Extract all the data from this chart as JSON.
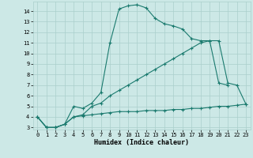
{
  "line1_x": [
    0,
    1,
    2,
    3,
    4,
    5,
    6,
    7,
    8,
    9,
    10,
    11,
    12,
    13,
    14,
    15,
    16,
    17,
    18,
    19,
    20,
    21
  ],
  "line1_y": [
    4.0,
    3.0,
    3.0,
    3.3,
    5.0,
    4.8,
    5.3,
    6.3,
    11.0,
    14.2,
    14.5,
    14.6,
    14.3,
    13.3,
    12.8,
    12.6,
    12.3,
    11.4,
    11.2,
    11.2,
    7.2,
    7.0
  ],
  "line2_x": [
    0,
    1,
    2,
    3,
    4,
    5,
    6,
    7,
    8,
    9,
    10,
    11,
    12,
    13,
    14,
    15,
    16,
    17,
    18,
    19,
    20,
    21,
    22,
    23
  ],
  "line2_y": [
    4.0,
    3.0,
    3.0,
    3.3,
    4.0,
    4.2,
    5.0,
    5.3,
    6.0,
    6.5,
    7.0,
    7.5,
    8.0,
    8.5,
    9.0,
    9.5,
    10.0,
    10.5,
    11.0,
    11.2,
    11.2,
    7.2,
    7.0,
    5.2
  ],
  "line3_x": [
    0,
    1,
    2,
    3,
    4,
    5,
    6,
    7,
    8,
    9,
    10,
    11,
    12,
    13,
    14,
    15,
    16,
    17,
    18,
    19,
    20,
    21,
    22,
    23
  ],
  "line3_y": [
    4.0,
    3.0,
    3.0,
    3.3,
    4.0,
    4.1,
    4.2,
    4.3,
    4.4,
    4.5,
    4.5,
    4.5,
    4.6,
    4.6,
    4.6,
    4.7,
    4.7,
    4.8,
    4.8,
    4.9,
    5.0,
    5.0,
    5.1,
    5.2
  ],
  "color": "#1a7a6e",
  "bg_color": "#cce8e6",
  "grid_color": "#aacfcc",
  "xlabel": "Humidex (Indice chaleur)",
  "xlim": [
    -0.5,
    23.5
  ],
  "ylim": [
    2.8,
    14.9
  ],
  "yticks": [
    3,
    4,
    5,
    6,
    7,
    8,
    9,
    10,
    11,
    12,
    13,
    14
  ],
  "xticks": [
    0,
    1,
    2,
    3,
    4,
    5,
    6,
    7,
    8,
    9,
    10,
    11,
    12,
    13,
    14,
    15,
    16,
    17,
    18,
    19,
    20,
    21,
    22,
    23
  ],
  "marker": "+",
  "markersize": 3,
  "linewidth": 0.8,
  "tick_fontsize": 5,
  "xlabel_fontsize": 6
}
